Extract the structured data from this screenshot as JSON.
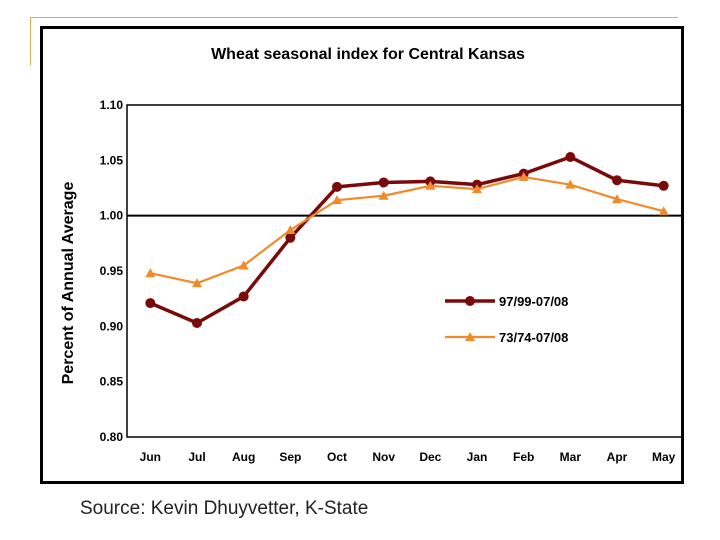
{
  "source_text": "Source: Kevin Dhuyvetter, K-State",
  "colors": {
    "series1": "#7a0a0a",
    "series2": "#f08a2a",
    "axis": "#000000"
  },
  "chart_data": {
    "type": "line",
    "title": "Wheat seasonal index for Central Kansas",
    "xlabel": "",
    "ylabel": "Percent of Annual Average",
    "categories": [
      "Jun",
      "Jul",
      "Aug",
      "Sep",
      "Oct",
      "Nov",
      "Dec",
      "Jan",
      "Feb",
      "Mar",
      "Apr",
      "May"
    ],
    "ylim": [
      0.8,
      1.1
    ],
    "yticks": [
      "1.10",
      "1.05",
      "1.00",
      "0.95",
      "0.90",
      "0.85",
      "0.80"
    ],
    "reference_line": 1.0,
    "legend_position": "right-middle",
    "series": [
      {
        "name": "97/99-07/08",
        "marker": "circle",
        "values": [
          0.921,
          0.903,
          0.927,
          0.98,
          1.026,
          1.03,
          1.031,
          1.028,
          1.038,
          1.053,
          1.032,
          1.027
        ]
      },
      {
        "name": "73/74-07/08",
        "marker": "triangle",
        "values": [
          0.948,
          0.939,
          0.955,
          0.987,
          1.014,
          1.018,
          1.027,
          1.024,
          1.035,
          1.028,
          1.015,
          1.004
        ]
      }
    ]
  }
}
